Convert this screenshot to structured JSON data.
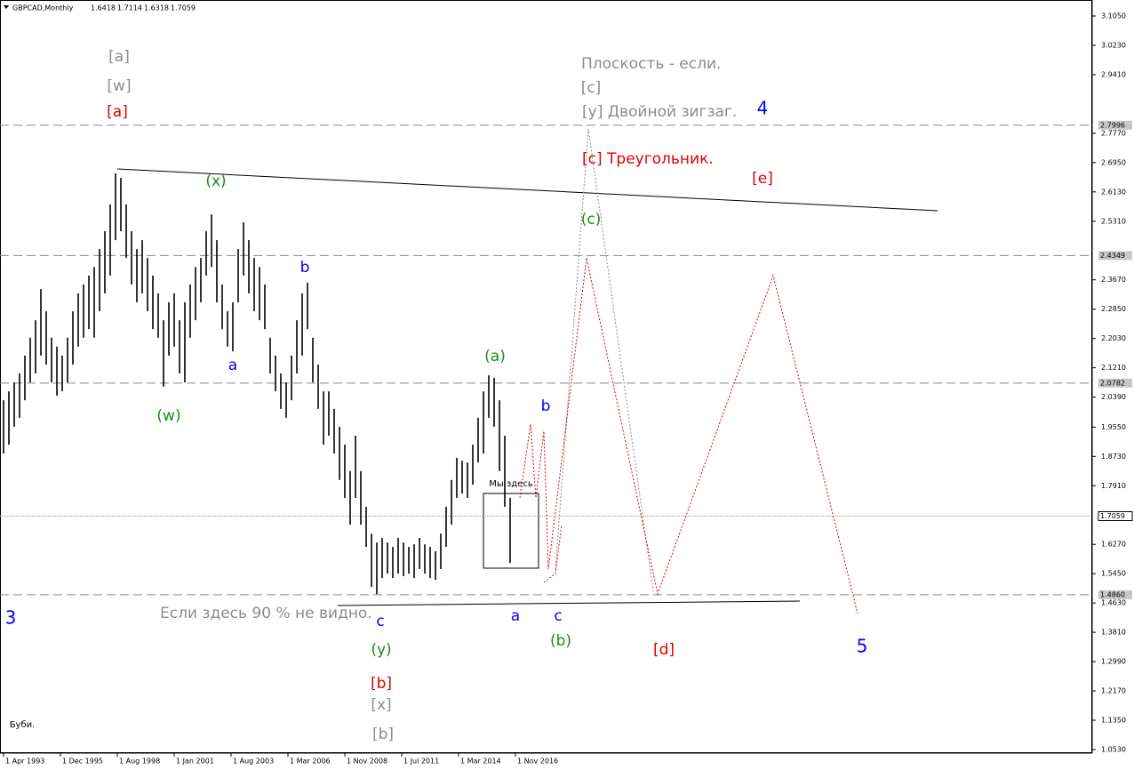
{
  "chart_data": {
    "type": "ohlc",
    "title": "GBPCAD,Monthly",
    "last_ohlc": [
      1.6418,
      1.7114,
      1.6318,
      1.7059
    ],
    "color": "#000000",
    "x": [
      0,
      3,
      6,
      9,
      12,
      15,
      18,
      21,
      24,
      27,
      30,
      33,
      36,
      39,
      42,
      45,
      48,
      51,
      54,
      57,
      60,
      63,
      66,
      69,
      72,
      75,
      78,
      81,
      84,
      87,
      90,
      93,
      96,
      99,
      102,
      105,
      108,
      111,
      114,
      117,
      120,
      123,
      126,
      129,
      132,
      135,
      138,
      141,
      144,
      147,
      150,
      153,
      156,
      159,
      162,
      165,
      168,
      171,
      174,
      177,
      180,
      183,
      186,
      189,
      192,
      195,
      198,
      201,
      204,
      207,
      210,
      213,
      216,
      219,
      222,
      225,
      228,
      231,
      234,
      237,
      240,
      243,
      246,
      249,
      252,
      255,
      258,
      261,
      264,
      267,
      270,
      273,
      276,
      279,
      282,
      285
    ],
    "high": [
      2.03,
      2.055,
      2.08,
      2.105,
      2.155,
      2.205,
      2.254,
      2.341,
      2.279,
      2.205,
      2.18,
      2.155,
      2.205,
      2.279,
      2.329,
      2.354,
      2.379,
      2.403,
      2.453,
      2.503,
      2.578,
      2.665,
      2.652,
      2.578,
      2.503,
      2.453,
      2.478,
      2.428,
      2.379,
      2.329,
      2.254,
      2.304,
      2.329,
      2.254,
      2.304,
      2.354,
      2.403,
      2.428,
      2.503,
      2.55,
      2.478,
      2.354,
      2.279,
      2.304,
      2.453,
      2.528,
      2.478,
      2.428,
      2.403,
      2.354,
      2.205,
      2.155,
      2.105,
      2.08,
      2.155,
      2.254,
      2.329,
      2.359,
      2.205,
      2.13,
      2.055,
      2.055,
      2.006,
      1.956,
      1.906,
      1.832,
      1.931,
      1.832,
      1.732,
      1.657,
      1.632,
      1.645,
      1.632,
      1.62,
      1.645,
      1.632,
      1.62,
      1.627,
      1.645,
      1.627,
      1.62,
      1.608,
      1.657,
      1.732,
      1.807,
      1.869,
      1.861,
      1.856,
      1.906,
      1.981,
      2.055,
      2.1,
      2.093,
      2.03,
      1.931,
      1.757
    ],
    "low": [
      1.881,
      1.906,
      1.956,
      1.981,
      2.03,
      2.08,
      2.105,
      2.155,
      2.13,
      2.08,
      2.043,
      2.055,
      2.08,
      2.13,
      2.18,
      2.205,
      2.229,
      2.205,
      2.279,
      2.329,
      2.379,
      2.478,
      2.503,
      2.428,
      2.354,
      2.304,
      2.329,
      2.279,
      2.229,
      2.205,
      2.068,
      2.155,
      2.18,
      2.105,
      2.08,
      2.205,
      2.254,
      2.304,
      2.379,
      2.403,
      2.304,
      2.229,
      2.18,
      2.167,
      2.304,
      2.379,
      2.329,
      2.279,
      2.254,
      2.229,
      2.105,
      2.055,
      2.006,
      1.981,
      2.03,
      2.105,
      2.155,
      2.229,
      2.08,
      2.006,
      1.906,
      1.931,
      1.881,
      1.807,
      1.757,
      1.682,
      1.757,
      1.682,
      1.62,
      1.508,
      1.488,
      1.533,
      1.545,
      1.533,
      1.545,
      1.538,
      1.545,
      1.533,
      1.558,
      1.545,
      1.533,
      1.528,
      1.558,
      1.62,
      1.682,
      1.757,
      1.769,
      1.757,
      1.794,
      1.856,
      1.881,
      1.981,
      1.956,
      1.832,
      1.732,
      1.575
    ],
    "xlim": [
      -2,
      612
    ],
    "xticks": [
      {
        "value": 0,
        "label": "1 Apr 1993"
      },
      {
        "value": 32,
        "label": "1 Dec 1995"
      },
      {
        "value": 64,
        "label": "1 Aug 1998"
      },
      {
        "value": 96,
        "label": "1 Jan 2001"
      },
      {
        "value": 128,
        "label": "1 Aug 2003"
      },
      {
        "value": 160,
        "label": "1 Mar 2006"
      },
      {
        "value": 192,
        "label": "1 Nov 2008"
      },
      {
        "value": 224,
        "label": "1 Jul 2011"
      },
      {
        "value": 256,
        "label": "1 Mar 2014"
      },
      {
        "value": 288,
        "label": "1 Nov 2016"
      }
    ],
    "ylim": [
      1.053,
      3.105
    ],
    "yticks": [
      {
        "value": 3.105,
        "label": "3.1050"
      },
      {
        "value": 3.023,
        "label": "3.0230"
      },
      {
        "value": 2.941,
        "label": "2.9410"
      },
      {
        "value": 2.777,
        "label": "2.7770"
      },
      {
        "value": 2.695,
        "label": "2.6950"
      },
      {
        "value": 2.613,
        "label": "2.6130"
      },
      {
        "value": 2.531,
        "label": "2.5310"
      },
      {
        "value": 2.367,
        "label": "2.3670"
      },
      {
        "value": 2.285,
        "label": "2.2850"
      },
      {
        "value": 2.203,
        "label": "2.2030"
      },
      {
        "value": 2.121,
        "label": "2.1210"
      },
      {
        "value": 2.039,
        "label": "2.0390"
      },
      {
        "value": 1.955,
        "label": "1.9550"
      },
      {
        "value": 1.873,
        "label": "1.8730"
      },
      {
        "value": 1.791,
        "label": "1.7910"
      },
      {
        "value": 1.627,
        "label": "1.6270"
      },
      {
        "value": 1.545,
        "label": "1.5450"
      },
      {
        "value": 1.463,
        "label": "1.4630"
      },
      {
        "value": 1.381,
        "label": "1.3810"
      },
      {
        "value": 1.299,
        "label": "1.2990"
      },
      {
        "value": 1.217,
        "label": "1.2170"
      },
      {
        "value": 1.135,
        "label": "1.1350"
      },
      {
        "value": 1.053,
        "label": "1.0530"
      }
    ],
    "levels": [
      {
        "value": 2.7996,
        "label": "2.7996"
      },
      {
        "value": 2.4349,
        "label": "2.4349"
      },
      {
        "value": 2.0782,
        "label": "2.0782"
      },
      {
        "value": 1.7059,
        "label": "1.7059"
      },
      {
        "value": 1.486,
        "label": "1.4860"
      }
    ],
    "current_level": 3,
    "annotations": [
      {
        "text": "[a]",
        "color": "#8c8c8c"
      },
      {
        "text": "[w]",
        "color": "#8c8c8c"
      },
      {
        "text": "[a]",
        "color": "#e00000"
      },
      {
        "text": "(x)",
        "color": "#1a8a1a"
      },
      {
        "text": "b",
        "color": "#0000ff"
      },
      {
        "text": "a",
        "color": "#0000ff"
      },
      {
        "text": "(w)",
        "color": "#1a8a1a"
      },
      {
        "text": "Плоскость - если.",
        "color": "#8c8c8c"
      },
      {
        "text": "[c]",
        "color": "#8c8c8c"
      },
      {
        "text": "[y] Двойной зигзаг.",
        "color": "#8c8c8c"
      },
      {
        "text": "4",
        "color": "#0000ff"
      },
      {
        "text": "[c] Треугольник.",
        "color": "#e00000"
      },
      {
        "text": "[e]",
        "color": "#e00000"
      },
      {
        "text": "(c)",
        "color": "#1a8a1a"
      },
      {
        "text": "(a)",
        "color": "#1a8a1a"
      },
      {
        "text": "b",
        "color": "#0000ff"
      },
      {
        "text": "Мы здесь",
        "color": "#000000"
      },
      {
        "text": "3",
        "color": "#0000ff"
      },
      {
        "text": "Если здесь 90 % не видно.",
        "color": "#8c8c8c"
      },
      {
        "text": "c",
        "color": "#0000ff"
      },
      {
        "text": "a",
        "color": "#0000ff"
      },
      {
        "text": "c",
        "color": "#0000ff"
      },
      {
        "text": "(y)",
        "color": "#1a8a1a"
      },
      {
        "text": "(b)",
        "color": "#1a8a1a"
      },
      {
        "text": "[d]",
        "color": "#e00000"
      },
      {
        "text": "5",
        "color": "#0000ff"
      },
      {
        "text": "[b]",
        "color": "#e00000"
      },
      {
        "text": "[x]",
        "color": "#8c8c8c"
      },
      {
        "text": "[b]",
        "color": "#8c8c8c"
      },
      {
        "text": "Буби.",
        "color": "#000000"
      }
    ]
  }
}
